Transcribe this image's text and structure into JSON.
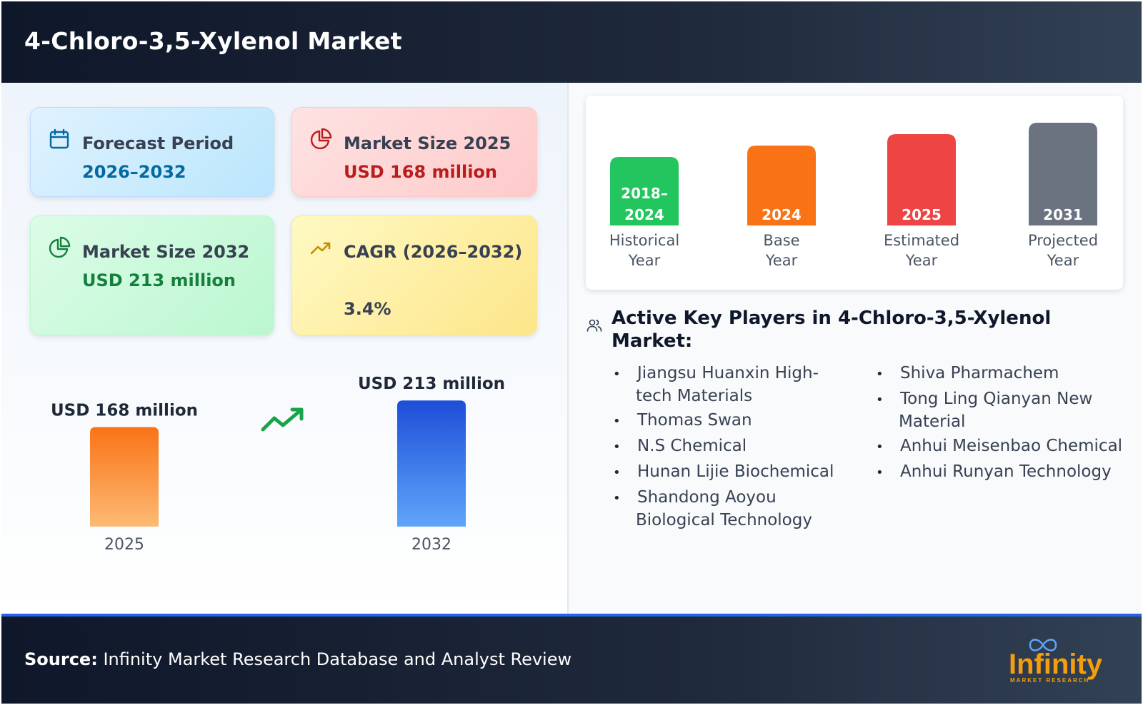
{
  "header": {
    "title": "4-Chloro-3,5-Xylenol Market"
  },
  "cards": {
    "forecast": {
      "label": "Forecast Period",
      "value": "2026–2032",
      "icon": "calendar-icon",
      "color": "#0369a1"
    },
    "size2025": {
      "label": "Market Size 2025",
      "value": "USD 168 million",
      "icon": "pie-chart-icon",
      "color": "#b91c1c"
    },
    "size2032": {
      "label": "Market Size 2032",
      "value": "USD 213 million",
      "icon": "pie-chart-icon",
      "color": "#15803d"
    },
    "cagr": {
      "label": "CAGR (2026–2032)",
      "value": "3.4%",
      "icon": "trend-up-icon",
      "color": "#ca8a04"
    }
  },
  "chart_data": [
    {
      "type": "bar",
      "categories": [
        "2025",
        "2032"
      ],
      "values": [
        168,
        213
      ],
      "data_labels": [
        "USD 168 million",
        "USD 213 million"
      ],
      "colors": [
        "#f97316",
        "#2563eb"
      ],
      "trend_icon": "trend-up-icon"
    }
  ],
  "timeline": [
    {
      "label": "2018–\n2024",
      "caption": "Historical\nYear",
      "color": "#22c55e",
      "level": 1
    },
    {
      "label": "2024",
      "caption": "Base\nYear",
      "color": "#f97316",
      "level": 2
    },
    {
      "label": "2025",
      "caption": "Estimated\nYear",
      "color": "#ef4444",
      "level": 3
    },
    {
      "label": "2031",
      "caption": "Projected\nYear",
      "color": "#6b7280",
      "level": 4
    }
  ],
  "players": {
    "title": "Active Key Players in 4-Chloro-3,5-Xylenol Market:",
    "col1": [
      "Jiangsu Huanxin High-tech Materials",
      "Thomas Swan",
      "N.S Chemical",
      "Hunan Lijie Biochemical",
      "Shandong Aoyou Biological Technology"
    ],
    "col2": [
      "Shiva Pharmachem",
      "Tong Ling Qianyan New Material",
      "Anhui Meisenbao Chemical",
      "Anhui Runyan Technology"
    ]
  },
  "footer": {
    "source_label": "Source:",
    "source_text": "Infinity Market Research Database and Analyst Review",
    "logo_text": "Infinity",
    "logo_subtext": "MARKET RESEARCH"
  }
}
